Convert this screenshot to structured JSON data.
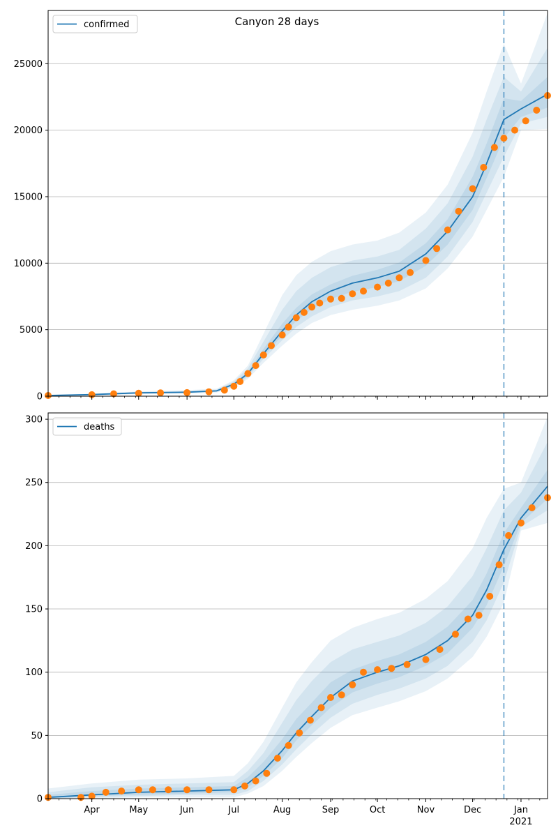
{
  "figure_title": "Canyon 28 days",
  "colors": {
    "model_line": "#1f77b4",
    "observed_points": "#ff7f0e",
    "band": "#1f77b4",
    "grid": "#b0b0b0",
    "divider": "#1f77b4"
  },
  "chart_data": [
    {
      "type": "line",
      "legend": "confirmed",
      "legend_position": "top-left",
      "grid": "y",
      "x_start": "2020-03-04",
      "x_end": "2021-01-18",
      "forecast_start": "2020-12-21",
      "x_month_labels": [
        "Apr",
        "May",
        "Jun",
        "Jul",
        "Aug",
        "Sep",
        "Oct",
        "Nov",
        "Dec",
        "Jan"
      ],
      "x_year_label": "2021",
      "ylim": [
        0,
        29000
      ],
      "yticks": [
        0,
        5000,
        10000,
        15000,
        20000,
        25000
      ],
      "model": {
        "dates": [
          "2020-03-04",
          "2020-04-01",
          "2020-05-01",
          "2020-06-01",
          "2020-06-20",
          "2020-07-01",
          "2020-07-10",
          "2020-07-20",
          "2020-08-01",
          "2020-08-10",
          "2020-08-20",
          "2020-09-01",
          "2020-09-15",
          "2020-10-01",
          "2020-10-15",
          "2020-11-01",
          "2020-11-15",
          "2020-12-01",
          "2020-12-10",
          "2020-12-21",
          "2021-01-01",
          "2021-01-18"
        ],
        "values": [
          50,
          120,
          250,
          300,
          400,
          900,
          1700,
          3200,
          4900,
          6100,
          7100,
          7900,
          8500,
          8900,
          9400,
          10700,
          12400,
          15000,
          17500,
          20800,
          21600,
          22700
        ],
        "bands": [
          {
            "lower": [
              20,
              60,
              150,
              200,
              280,
              650,
              1300,
              2500,
              3800,
              4700,
              5500,
              6100,
              6500,
              6800,
              7200,
              8100,
              9600,
              12000,
              14000,
              16500,
              20000,
              20100
            ],
            "upper": [
              80,
              180,
              350,
              450,
              560,
              1200,
              2300,
              4700,
              7600,
              9100,
              10100,
              10900,
              11400,
              11700,
              12300,
              13800,
              15900,
              19800,
              22900,
              26500,
              23500,
              28800
            ]
          },
          {
            "lower": [
              30,
              80,
              180,
              240,
              320,
              720,
              1450,
              2800,
              4200,
              5200,
              6000,
              6700,
              7200,
              7500,
              7900,
              8900,
              10500,
              13100,
              15300,
              18000,
              20500,
              21000
            ],
            "upper": [
              70,
              160,
              310,
              380,
              500,
              1100,
              2100,
              4100,
              6500,
              7900,
              8900,
              9700,
              10200,
              10500,
              11000,
              12600,
              14500,
              18000,
              20800,
              24000,
              22900,
              26200
            ]
          },
          {
            "lower": [
              40,
              100,
              210,
              270,
              360,
              800,
              1570,
              3000,
              4550,
              5650,
              6550,
              7300,
              7850,
              8200,
              8650,
              9800,
              11400,
              14000,
              16400,
              19400,
              21000,
              21700
            ],
            "upper": [
              60,
              140,
              290,
              330,
              450,
              1000,
              1850,
              3550,
              5450,
              6650,
              7650,
              8400,
              9050,
              9500,
              10050,
              11500,
              13300,
              16500,
              19000,
              22400,
              22200,
              24000
            ]
          }
        ]
      },
      "observed": {
        "dates": [
          "2020-03-04",
          "2020-04-01",
          "2020-04-15",
          "2020-05-01",
          "2020-05-15",
          "2020-06-01",
          "2020-06-15",
          "2020-06-25",
          "2020-07-01",
          "2020-07-05",
          "2020-07-10",
          "2020-07-15",
          "2020-07-20",
          "2020-07-25",
          "2020-08-01",
          "2020-08-05",
          "2020-08-10",
          "2020-08-15",
          "2020-08-20",
          "2020-08-25",
          "2020-09-01",
          "2020-09-08",
          "2020-09-15",
          "2020-09-22",
          "2020-10-01",
          "2020-10-08",
          "2020-10-15",
          "2020-10-22",
          "2020-11-01",
          "2020-11-08",
          "2020-11-15",
          "2020-11-22",
          "2020-12-01",
          "2020-12-08",
          "2020-12-15",
          "2020-12-21",
          "2020-12-28",
          "2021-01-04",
          "2021-01-11",
          "2021-01-18"
        ],
        "values": [
          50,
          110,
          180,
          220,
          250,
          270,
          330,
          450,
          750,
          1100,
          1700,
          2300,
          3100,
          3800,
          4600,
          5200,
          5900,
          6300,
          6700,
          7000,
          7300,
          7350,
          7700,
          7900,
          8200,
          8500,
          8900,
          9300,
          10200,
          11100,
          12500,
          13900,
          15600,
          17200,
          18700,
          19400,
          20000,
          20700,
          21500,
          22600
        ]
      }
    },
    {
      "type": "line",
      "legend": "deaths",
      "legend_position": "top-left",
      "grid": "y",
      "x_start": "2020-03-04",
      "x_end": "2021-01-18",
      "forecast_start": "2020-12-21",
      "x_month_labels": [
        "Apr",
        "May",
        "Jun",
        "Jul",
        "Aug",
        "Sep",
        "Oct",
        "Nov",
        "Dec",
        "Jan"
      ],
      "x_year_label": "2021",
      "ylim": [
        0,
        305
      ],
      "yticks": [
        0,
        50,
        100,
        150,
        200,
        250,
        300
      ],
      "model": {
        "dates": [
          "2020-03-04",
          "2020-04-01",
          "2020-05-01",
          "2020-06-01",
          "2020-07-01",
          "2020-07-10",
          "2020-07-20",
          "2020-08-01",
          "2020-08-10",
          "2020-08-20",
          "2020-09-01",
          "2020-09-15",
          "2020-10-01",
          "2020-10-15",
          "2020-11-01",
          "2020-11-15",
          "2020-12-01",
          "2020-12-10",
          "2020-12-21",
          "2021-01-01",
          "2021-01-18"
        ],
        "values": [
          1,
          3,
          5,
          6,
          7,
          12,
          22,
          38,
          52,
          65,
          80,
          93,
          100,
          105,
          114,
          125,
          145,
          165,
          197,
          222,
          247
        ],
        "bands": [
          {
            "lower": [
              0,
              0,
              1,
              1,
              1,
              4,
              10,
              22,
              33,
              44,
              56,
              66,
              72,
              77,
              85,
              95,
              112,
              128,
              155,
              212,
              218
            ],
            "upper": [
              8,
              12,
              15,
              16,
              18,
              28,
              45,
              72,
              92,
              108,
              125,
              135,
              142,
              147,
              158,
              172,
              198,
              222,
              245,
              250,
              302
            ]
          },
          {
            "lower": [
              0,
              1,
              2,
              3,
              3,
              6,
              14,
              27,
              39,
              51,
              64,
              75,
              82,
              87,
              95,
              105,
              124,
              141,
              171,
              215,
              228
            ],
            "upper": [
              5,
              9,
              11,
              12,
              13,
              22,
              36,
              60,
              78,
              93,
              108,
              118,
              124,
              129,
              139,
              152,
              176,
              198,
              228,
              242,
              282
            ]
          },
          {
            "lower": [
              0,
              2,
              3,
              4,
              5,
              9,
              18,
              32,
              46,
              58,
              72,
              84,
              91,
              96,
              105,
              115,
              135,
              153,
              184,
              218,
              237
            ],
            "upper": [
              3,
              6,
              8,
              9,
              10,
              17,
              29,
              47,
              63,
              76,
              92,
              102,
              109,
              114,
              124,
              136,
              157,
              178,
              210,
              230,
              260
            ]
          }
        ]
      },
      "observed": {
        "dates": [
          "2020-03-04",
          "2020-03-25",
          "2020-04-01",
          "2020-04-10",
          "2020-04-20",
          "2020-05-01",
          "2020-05-10",
          "2020-05-20",
          "2020-06-01",
          "2020-06-15",
          "2020-07-01",
          "2020-07-08",
          "2020-07-15",
          "2020-07-22",
          "2020-07-29",
          "2020-08-05",
          "2020-08-12",
          "2020-08-19",
          "2020-08-26",
          "2020-09-01",
          "2020-09-08",
          "2020-09-15",
          "2020-09-22",
          "2020-10-01",
          "2020-10-10",
          "2020-10-20",
          "2020-11-01",
          "2020-11-10",
          "2020-11-20",
          "2020-11-28",
          "2020-12-05",
          "2020-12-12",
          "2020-12-18",
          "2020-12-24",
          "2021-01-01",
          "2021-01-08",
          "2021-01-18"
        ],
        "values": [
          1,
          1,
          2,
          5,
          6,
          7,
          7,
          7,
          7,
          7,
          7,
          10,
          14,
          20,
          32,
          42,
          52,
          62,
          72,
          80,
          82,
          90,
          100,
          102,
          103,
          106,
          110,
          118,
          130,
          142,
          145,
          160,
          185,
          208,
          218,
          230,
          238
        ]
      }
    }
  ]
}
